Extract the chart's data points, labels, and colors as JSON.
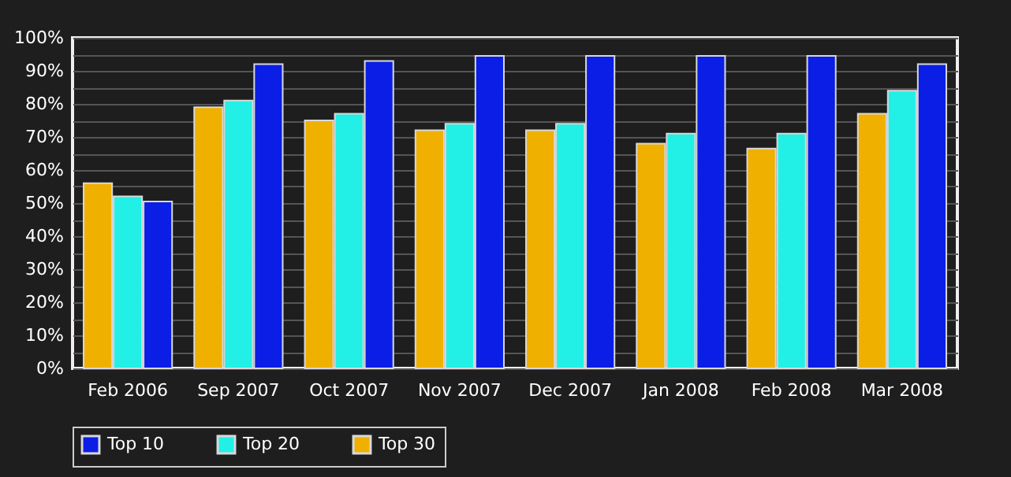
{
  "chart_data": {
    "type": "bar",
    "categories": [
      "Feb 2006",
      "Sep 2007",
      "Oct 2007",
      "Nov 2007",
      "Dec 2007",
      "Jan 2008",
      "Feb 2008",
      "Mar 2008"
    ],
    "series": [
      {
        "name": "Top 10",
        "color": "#0a1ee6",
        "values": [
          50.5,
          92,
          93,
          94.5,
          94.5,
          94.5,
          94.5,
          92
        ]
      },
      {
        "name": "Top 20",
        "color": "#22f0e6",
        "values": [
          52,
          81,
          77,
          74,
          74,
          71,
          71,
          84
        ]
      },
      {
        "name": "Top 30",
        "color": "#f0b000",
        "values": [
          56,
          79,
          75,
          72,
          72,
          68,
          66.5,
          77
        ]
      }
    ],
    "ylim": [
      0,
      100
    ],
    "yticks": [
      {
        "value": 0,
        "label": "0%"
      },
      {
        "value": 5,
        "label": null
      },
      {
        "value": 10,
        "label": "10%"
      },
      {
        "value": 15,
        "label": null
      },
      {
        "value": 20,
        "label": "20%"
      },
      {
        "value": 25,
        "label": null
      },
      {
        "value": 30,
        "label": "30%"
      },
      {
        "value": 35,
        "label": null
      },
      {
        "value": 40,
        "label": "40%"
      },
      {
        "value": 45,
        "label": null
      },
      {
        "value": 50,
        "label": "50%"
      },
      {
        "value": 55,
        "label": null
      },
      {
        "value": 60,
        "label": "60%"
      },
      {
        "value": 65,
        "label": null
      },
      {
        "value": 70,
        "label": "70%"
      },
      {
        "value": 75,
        "label": null
      },
      {
        "value": 80,
        "label": "80%"
      },
      {
        "value": 85,
        "label": null
      },
      {
        "value": 90,
        "label": "90%"
      },
      {
        "value": 95,
        "label": null
      },
      {
        "value": 100,
        "label": "100%"
      }
    ],
    "grid": "y",
    "legend": "bottom"
  }
}
